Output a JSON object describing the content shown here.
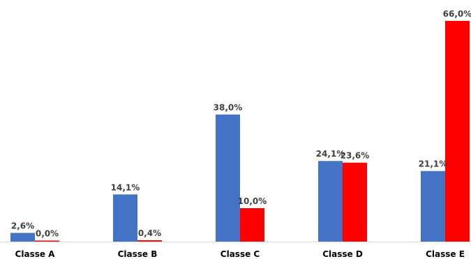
{
  "chart_data": {
    "type": "bar",
    "categories": [
      "Classe A",
      "Classe B",
      "Classe C",
      "Classe D",
      "Classe E"
    ],
    "series": [
      {
        "color": "#4472C4",
        "values": [
          2.6,
          14.1,
          38.0,
          24.1,
          21.1
        ],
        "labels": [
          "2,6%",
          "14,1%",
          "38,0%",
          "24,1%",
          "21,1%"
        ]
      },
      {
        "color": "#FF0000",
        "values": [
          0.0,
          0.4,
          10.0,
          23.6,
          66.0
        ],
        "labels": [
          "0,0%",
          "0,4%",
          "10,0%",
          "23,6%",
          "66,0%"
        ]
      }
    ],
    "ylim": [
      0,
      66.0
    ],
    "grid": false,
    "legend": false,
    "axis_color": "#D9D9D9"
  }
}
